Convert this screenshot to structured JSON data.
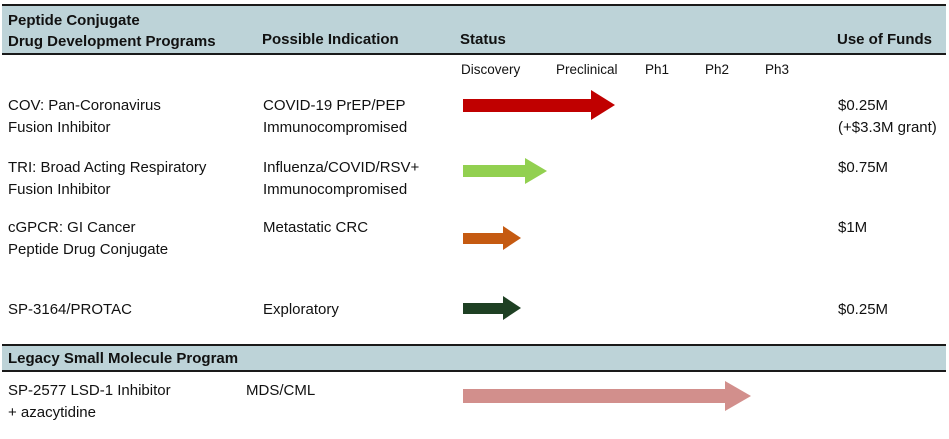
{
  "header": {
    "program_line1": "Peptide Conjugate",
    "program_line2": "Drug Development Programs",
    "indication": "Possible Indication",
    "status": "Status",
    "funds": "Use of Funds"
  },
  "phases": [
    "Discovery",
    "Preclinical",
    "Ph1",
    "Ph2",
    "Ph3"
  ],
  "legacy_header": "Legacy Small Molecule Program",
  "colors": {
    "header_band_bg": "#bdd3d8",
    "band_border": "#1a1a1a",
    "cov_arrow": "#c00000",
    "tri_arrow": "#92d050",
    "cgpcr_arrow": "#c55a11",
    "protac_arrow": "#1e4023",
    "legacy_arrow": "#d28f8c"
  },
  "rows": [
    {
      "program": "COV: Pan-Coronavirus\nFusion Inhibitor",
      "indication": "COVID-19 PrEP/PEP\nImmunocompromised",
      "funds": "$0.25M\n(+$3.3M grant)",
      "arrow": {
        "color": "#c00000",
        "end_phase": "Preclinical",
        "shaft_w": 128,
        "shaft_h": 13,
        "head_w": 24,
        "head_h": 30
      }
    },
    {
      "program": "TRI: Broad Acting Respiratory\nFusion Inhibitor",
      "indication": "Influenza/COVID/RSV+\nImmunocompromised",
      "funds": "$0.75M",
      "arrow": {
        "color": "#92d050",
        "end_phase": "Discovery",
        "shaft_w": 62,
        "shaft_h": 12,
        "head_w": 22,
        "head_h": 27
      }
    },
    {
      "program": "cGPCR: GI Cancer\nPeptide Drug Conjugate",
      "indication": "Metastatic CRC",
      "funds": "$1M",
      "arrow": {
        "color": "#c55a11",
        "end_phase": "Discovery",
        "shaft_w": 40,
        "shaft_h": 11,
        "head_w": 18,
        "head_h": 24
      }
    },
    {
      "program": "SP-3164/PROTAC",
      "indication": "Exploratory",
      "funds": "$0.25M",
      "arrow": {
        "color": "#1e4023",
        "end_phase": "Discovery",
        "shaft_w": 40,
        "shaft_h": 11,
        "head_w": 18,
        "head_h": 24
      }
    },
    {
      "program": "SP-2577 LSD-1 Inhibitor\n+ azacytidine",
      "indication": "MDS/CML",
      "funds": "",
      "arrow": {
        "color": "#d28f8c",
        "end_phase": "Ph2/Ph3",
        "shaft_w": 262,
        "shaft_h": 14,
        "head_w": 26,
        "head_h": 30
      }
    }
  ],
  "chart_data": {
    "type": "table",
    "title": "Peptide Conjugate Drug Development Programs",
    "columns": [
      "Peptide Conjugate Drug Development Programs",
      "Possible Indication",
      "Status",
      "Use of Funds"
    ],
    "phase_scale": [
      "Discovery",
      "Preclinical",
      "Ph1",
      "Ph2",
      "Ph3"
    ],
    "sections": [
      {
        "name": "Peptide Conjugate Drug Development Programs",
        "rows": [
          {
            "program": "COV: Pan-Coronavirus Fusion Inhibitor",
            "indication": "COVID-19 PrEP/PEP Immunocompromised",
            "status_progress": "Discovery through Preclinical",
            "arrow_color": "#c00000",
            "use_of_funds": "$0.25M (+$3.3M grant)"
          },
          {
            "program": "TRI: Broad Acting Respiratory Fusion Inhibitor",
            "indication": "Influenza/COVID/RSV+ Immunocompromised",
            "status_progress": "Discovery, approaching Preclinical",
            "arrow_color": "#92d050",
            "use_of_funds": "$0.75M"
          },
          {
            "program": "cGPCR: GI Cancer Peptide Drug Conjugate",
            "indication": "Metastatic CRC",
            "status_progress": "Discovery (early)",
            "arrow_color": "#c55a11",
            "use_of_funds": "$1M"
          },
          {
            "program": "SP-3164/PROTAC",
            "indication": "Exploratory",
            "status_progress": "Discovery (early)",
            "arrow_color": "#1e4023",
            "use_of_funds": "$0.25M"
          }
        ]
      },
      {
        "name": "Legacy Small Molecule Program",
        "rows": [
          {
            "program": "SP-2577 LSD-1 Inhibitor + azacytidine",
            "indication": "MDS/CML",
            "status_progress": "Discovery through Ph2, into Ph3",
            "arrow_color": "#d28f8c",
            "use_of_funds": ""
          }
        ]
      }
    ]
  }
}
